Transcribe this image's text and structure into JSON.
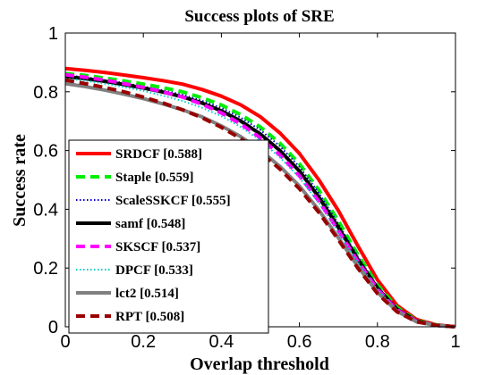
{
  "chart_data": {
    "type": "line",
    "title": "Success plots of SRE",
    "xlabel": "Overlap threshold",
    "ylabel": "Success rate",
    "xlim": [
      0,
      1
    ],
    "ylim": [
      0,
      1
    ],
    "x_ticks": [
      "0",
      "0.2",
      "0.4",
      "0.6",
      "0.8",
      "1"
    ],
    "y_ticks": [
      "0",
      "0.2",
      "0.4",
      "0.6",
      "0.8",
      "1"
    ],
    "grid": false,
    "legend_position": "left",
    "x": [
      0,
      0.05,
      0.1,
      0.15,
      0.2,
      0.25,
      0.3,
      0.35,
      0.4,
      0.45,
      0.5,
      0.55,
      0.6,
      0.65,
      0.7,
      0.75,
      0.8,
      0.85,
      0.9,
      0.95,
      1.0
    ],
    "series": [
      {
        "name": "SRDCF [0.588]",
        "color": "#ff0000",
        "dash": "solid",
        "values": [
          0.879,
          0.873,
          0.866,
          0.857,
          0.848,
          0.838,
          0.826,
          0.808,
          0.785,
          0.755,
          0.715,
          0.66,
          0.59,
          0.5,
          0.395,
          0.275,
          0.16,
          0.073,
          0.025,
          0.007,
          0.0
        ]
      },
      {
        "name": "Staple [0.559]",
        "color": "#00ee00",
        "dash": "dash",
        "values": [
          0.862,
          0.856,
          0.847,
          0.837,
          0.826,
          0.814,
          0.8,
          0.78,
          0.755,
          0.722,
          0.68,
          0.625,
          0.555,
          0.465,
          0.36,
          0.245,
          0.143,
          0.066,
          0.022,
          0.006,
          0.0
        ]
      },
      {
        "name": "ScaleSSKCF [0.555]",
        "color": "#0000cc",
        "dash": "dot",
        "values": [
          0.856,
          0.85,
          0.84,
          0.83,
          0.818,
          0.805,
          0.79,
          0.77,
          0.745,
          0.712,
          0.67,
          0.615,
          0.545,
          0.455,
          0.35,
          0.238,
          0.138,
          0.063,
          0.021,
          0.006,
          0.0
        ]
      },
      {
        "name": "samf [0.548]",
        "color": "#000000",
        "dash": "solid",
        "values": [
          0.852,
          0.845,
          0.836,
          0.825,
          0.813,
          0.799,
          0.783,
          0.762,
          0.735,
          0.7,
          0.656,
          0.6,
          0.53,
          0.441,
          0.338,
          0.229,
          0.132,
          0.06,
          0.02,
          0.005,
          0.0
        ]
      },
      {
        "name": "SKSCF [0.537]",
        "color": "#ff00ff",
        "dash": "dash",
        "values": [
          0.858,
          0.85,
          0.84,
          0.828,
          0.815,
          0.8,
          0.782,
          0.758,
          0.728,
          0.69,
          0.643,
          0.585,
          0.514,
          0.427,
          0.327,
          0.222,
          0.128,
          0.058,
          0.019,
          0.005,
          0.0
        ]
      },
      {
        "name": "DPCF [0.533]",
        "color": "#00cccc",
        "dash": "dot",
        "values": [
          0.845,
          0.838,
          0.828,
          0.816,
          0.803,
          0.787,
          0.769,
          0.746,
          0.717,
          0.68,
          0.634,
          0.577,
          0.508,
          0.422,
          0.323,
          0.219,
          0.126,
          0.057,
          0.019,
          0.005,
          0.0
        ]
      },
      {
        "name": "lct2 [0.514]",
        "color": "#808080",
        "dash": "solid",
        "values": [
          0.828,
          0.818,
          0.806,
          0.792,
          0.777,
          0.759,
          0.739,
          0.715,
          0.684,
          0.647,
          0.601,
          0.546,
          0.479,
          0.397,
          0.303,
          0.205,
          0.117,
          0.053,
          0.017,
          0.005,
          0.0
        ]
      },
      {
        "name": "RPT [0.508]",
        "color": "#990000",
        "dash": "dash",
        "values": [
          0.84,
          0.828,
          0.815,
          0.8,
          0.782,
          0.762,
          0.739,
          0.712,
          0.679,
          0.64,
          0.593,
          0.537,
          0.47,
          0.389,
          0.296,
          0.199,
          0.113,
          0.051,
          0.017,
          0.005,
          0.0
        ]
      }
    ]
  }
}
